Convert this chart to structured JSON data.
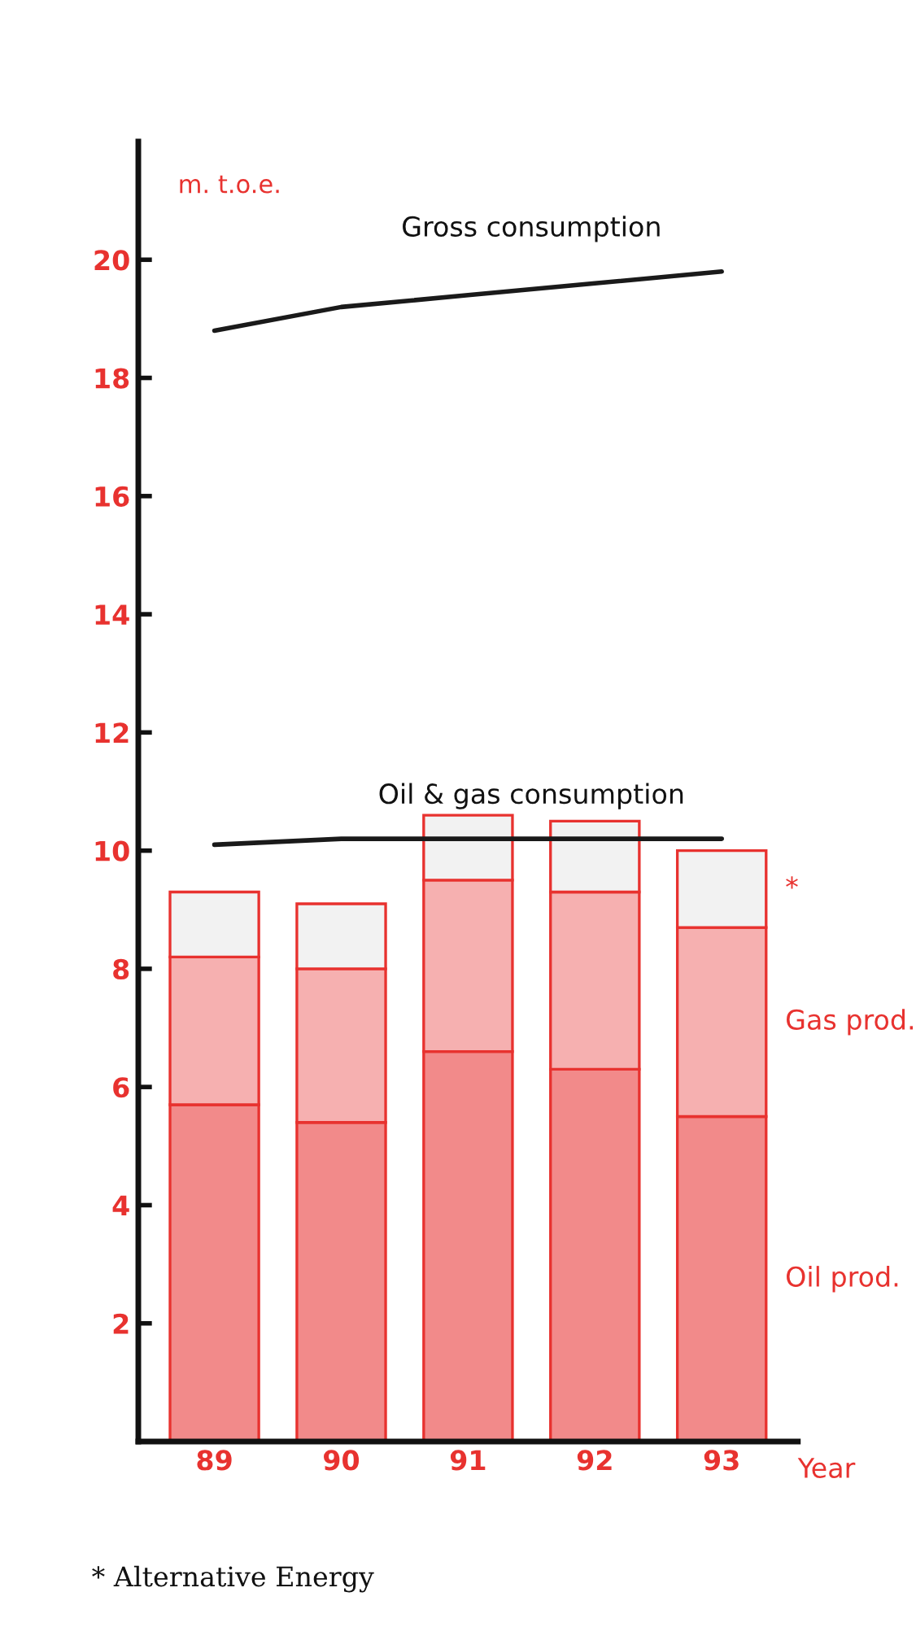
{
  "chart_data": {
    "type": "bar",
    "stacked": true,
    "ylabel": "m. t.o.e.",
    "xlabel": "Year",
    "categories": [
      "89",
      "90",
      "91",
      "92",
      "93"
    ],
    "series": [
      {
        "name": "Oil prod.",
        "color": "#f28a8a",
        "values": [
          5.7,
          5.4,
          6.6,
          6.3,
          5.5
        ]
      },
      {
        "name": "Gas prod.",
        "color": "#f6b0b0",
        "values": [
          2.5,
          2.6,
          2.9,
          3.0,
          3.2
        ]
      },
      {
        "name": "*",
        "color": "#f2f2f2",
        "values": [
          1.1,
          1.1,
          1.1,
          1.2,
          1.3
        ]
      },
      {
        "name": "Oil & gas consumption",
        "type": "line",
        "color": "#1a1a1a",
        "values": [
          10.1,
          10.2,
          10.2,
          10.2,
          10.2
        ]
      },
      {
        "name": "Gross consumption",
        "type": "line",
        "color": "#1a1a1a",
        "values": [
          18.8,
          19.2,
          19.4,
          19.6,
          19.8
        ]
      }
    ],
    "ylim": [
      0,
      22
    ],
    "yticks": [
      2,
      4,
      6,
      8,
      10,
      12,
      14,
      16,
      18,
      20
    ],
    "annotations": [
      "* Alternative Energy"
    ],
    "grid": false,
    "legend": false,
    "marker": "none"
  }
}
